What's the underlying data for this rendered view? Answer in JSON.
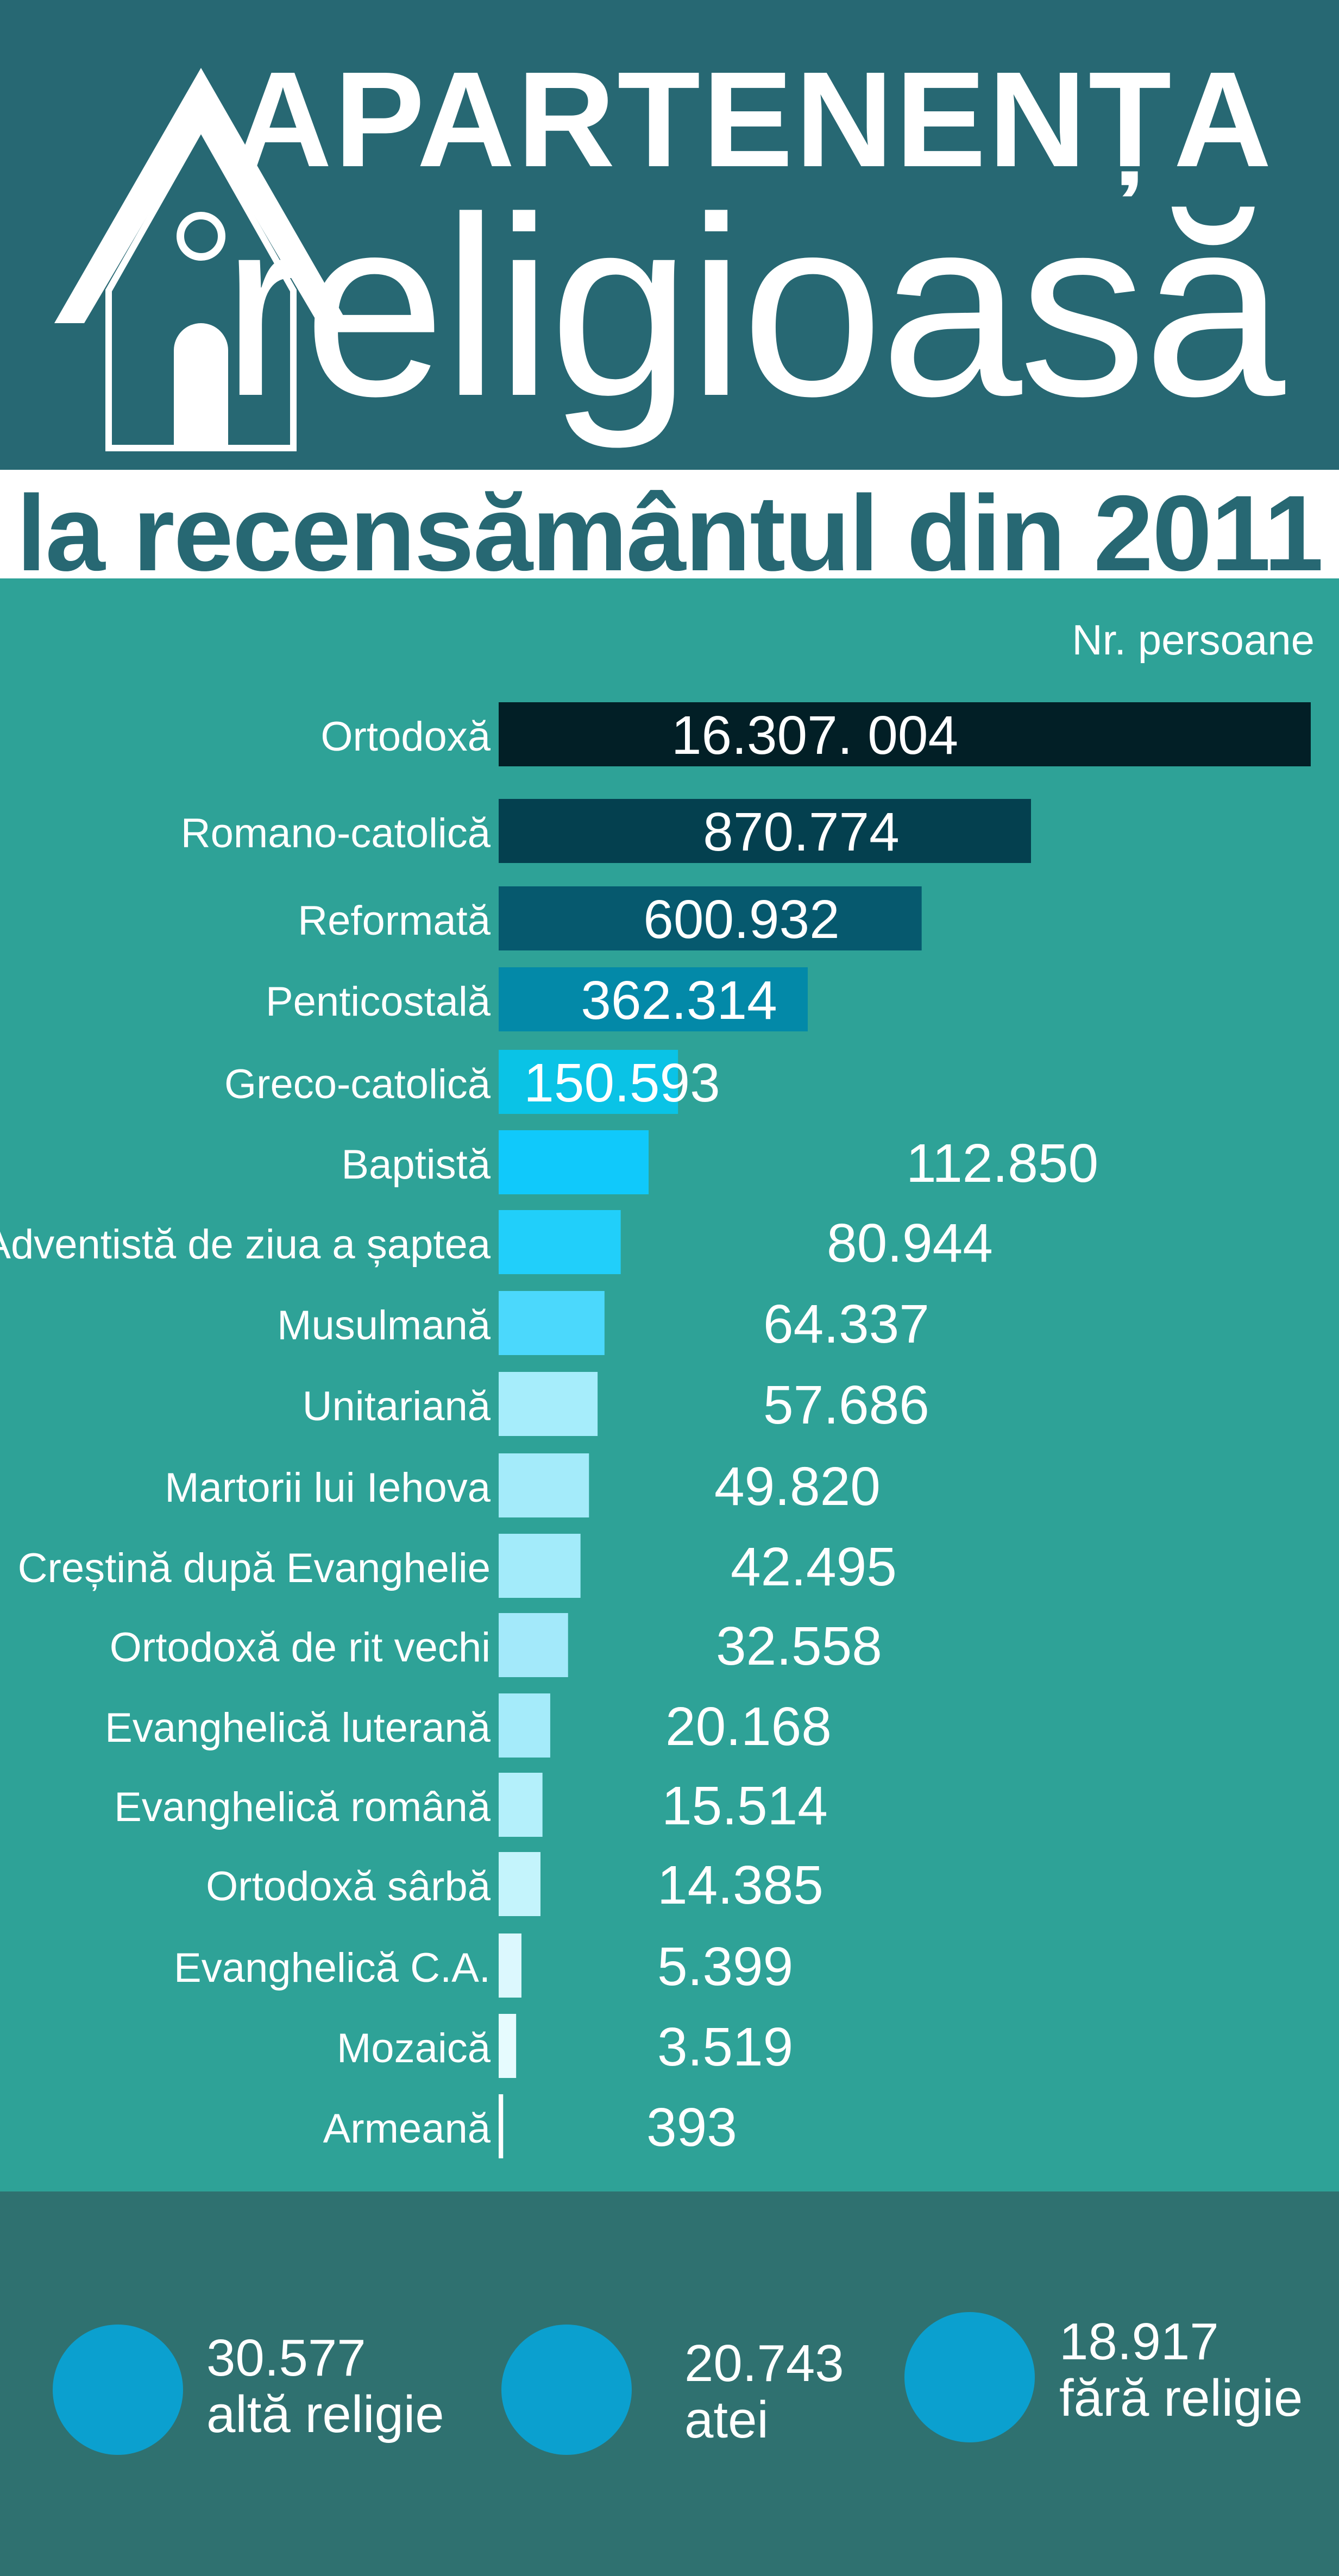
{
  "header": {
    "title_line1": "APARTENENȚA",
    "title_line2": "religioasă",
    "subtitle": "la recensământul din 2011",
    "icon": "church-house-icon"
  },
  "colors": {
    "header_bg": "#276873",
    "body_bg": "#2ea297",
    "footer_bg": "#2f7170",
    "circle": "#0ba0cf"
  },
  "chart_data": {
    "type": "bar",
    "orientation": "horizontal",
    "title": "APARTENENȚA religioasă la recensământul din 2011",
    "unit_label": "Nr. persoane",
    "categories": [
      "Ortodoxă",
      "Romano-catolică",
      "Reformată",
      "Penticostală",
      "Greco-catolică",
      "Baptistă",
      "Adventistă de ziua a șaptea",
      "Musulmană",
      "Unitariană",
      "Martorii lui Iehova",
      "Creștină după Evanghelie",
      "Ortodoxă de rit vechi",
      "Evanghelică luterană",
      "Evanghelică română",
      "Ortodoxă sârbă",
      "Evanghelică C.A.",
      "Mozaică",
      "Armeană"
    ],
    "values": [
      16307004,
      870774,
      600932,
      362314,
      150593,
      112850,
      80944,
      64337,
      57686,
      49820,
      42495,
      32558,
      20168,
      15514,
      14385,
      5399,
      3519,
      393
    ],
    "value_labels": [
      "16.307. 004",
      "870.774",
      "600.932",
      "362.314",
      "150.593",
      "112.850",
      "80.944",
      "64.337",
      "57.686",
      "49.820",
      "42.495",
      "32.558",
      "20.168",
      "15.514",
      "14.385",
      "5.399",
      "3.519",
      "393"
    ],
    "bar_colors": [
      "#021f26",
      "#04404f",
      "#06596e",
      "#0389a8",
      "#0ac3e6",
      "#10c9fb",
      "#21cffa",
      "#4bd8fc",
      "#a6edfb",
      "#a4ebfa",
      "#a3ebfa",
      "#a3e9fa",
      "#a5ebfa",
      "#b4f0fb",
      "#c4f4fc",
      "#dcf8fe",
      "#e6fbfe",
      "#ffffff"
    ],
    "scale": "non-linear (illustrative bar lengths)"
  },
  "footer": {
    "stats": [
      {
        "value": "30.577",
        "label": "altă religie"
      },
      {
        "value": "20.743",
        "label": "atei"
      },
      {
        "value": "18.917",
        "label": "fără religie"
      }
    ]
  }
}
